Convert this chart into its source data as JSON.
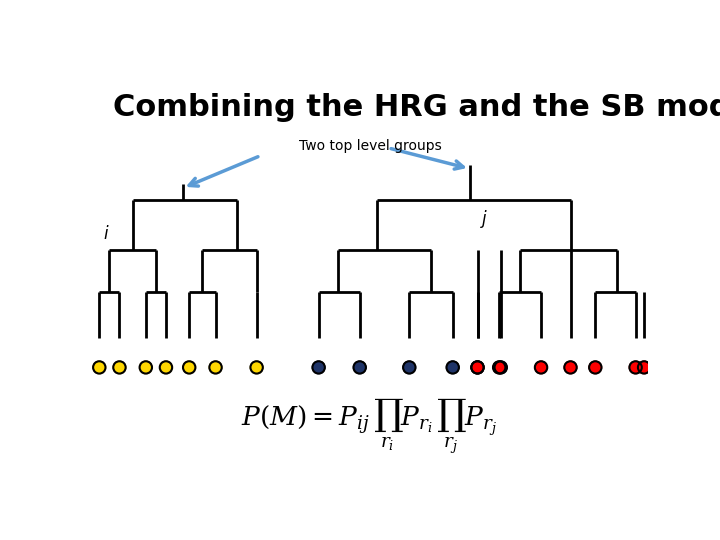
{
  "title": "Combining the HRG and the SB model",
  "annotation_text": "Two top level groups",
  "label_i": "i",
  "label_j": "j",
  "bg_color": "#ffffff",
  "line_color": "#000000",
  "arrow_color": "#5b9bd5",
  "yellow_color": "#FFD700",
  "blue_color": "#1F3468",
  "red_color": "#FF0000",
  "title_fontsize": 22,
  "annotation_fontsize": 10,
  "label_fontsize": 12
}
